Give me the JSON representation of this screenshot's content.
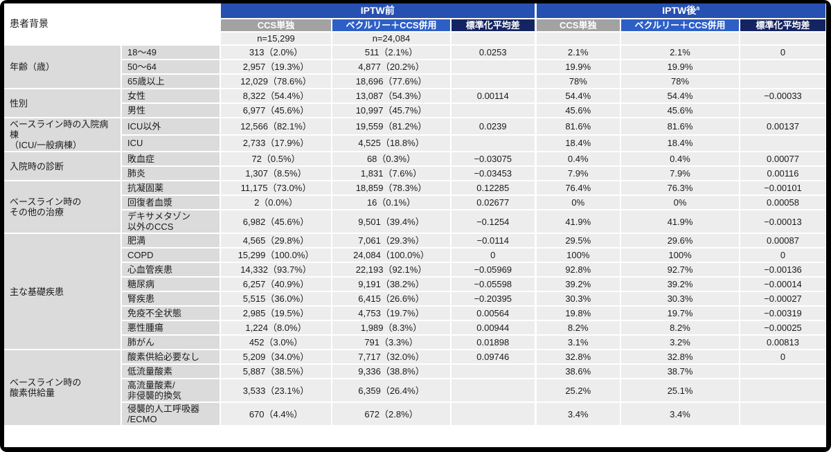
{
  "header": {
    "corner_label": "患者背景",
    "pre_title": "IPTW前",
    "post_title": "IPTW後",
    "post_sup": "a",
    "sub_ccs": "CCS単独",
    "sub_vek": "ベクルリー＋CCS併用",
    "sub_smd": "標準化平均差",
    "n_pre_ccs": "n=15,299",
    "n_pre_vek": "n=24,084"
  },
  "colors": {
    "band_blue": "#2650B2",
    "veklury_blue": "#2E5FC6",
    "smd_navy": "#142462",
    "ccs_gray": "#A2A2A2",
    "label_gray": "#DBDBDB",
    "cell_gray": "#EDEDED",
    "frame_black": "#000000"
  },
  "groups": [
    {
      "label": "年齢（歳）",
      "rows": [
        {
          "label": "18〜49",
          "pre_ccs": "313（2.0%）",
          "pre_vek": "511（2.1%）",
          "pre_smd": "0.0253",
          "post_ccs": "2.1%",
          "post_vek": "2.1%",
          "post_smd": "0"
        },
        {
          "label": "50〜64",
          "pre_ccs": "2,957（19.3%）",
          "pre_vek": "4,877（20.2%）",
          "pre_smd": "",
          "post_ccs": "19.9%",
          "post_vek": "19.9%",
          "post_smd": ""
        },
        {
          "label": "65歳以上",
          "pre_ccs": "12,029（78.6%）",
          "pre_vek": "18,696（77.6%）",
          "pre_smd": "",
          "post_ccs": "78%",
          "post_vek": "78%",
          "post_smd": ""
        }
      ]
    },
    {
      "label": "性別",
      "rows": [
        {
          "label": "女性",
          "pre_ccs": "8,322（54.4%）",
          "pre_vek": "13,087（54.3%）",
          "pre_smd": "0.00114",
          "post_ccs": "54.4%",
          "post_vek": "54.4%",
          "post_smd": "−0.00033"
        },
        {
          "label": "男性",
          "pre_ccs": "6,977（45.6%）",
          "pre_vek": "10,997（45.7%）",
          "pre_smd": "",
          "post_ccs": "45.6%",
          "post_vek": "45.6%",
          "post_smd": ""
        }
      ]
    },
    {
      "label": "ベースライン時の入院病棟\n（ICU/一般病棟）",
      "rows": [
        {
          "label": "ICU以外",
          "pre_ccs": "12,566（82.1%）",
          "pre_vek": "19,559（81.2%）",
          "pre_smd": "0.0239",
          "post_ccs": "81.6%",
          "post_vek": "81.6%",
          "post_smd": "0.00137"
        },
        {
          "label": "ICU",
          "pre_ccs": "2,733（17.9%）",
          "pre_vek": "4,525（18.8%）",
          "pre_smd": "",
          "post_ccs": "18.4%",
          "post_vek": "18.4%",
          "post_smd": ""
        }
      ]
    },
    {
      "label": "入院時の診断",
      "rows": [
        {
          "label": "敗血症",
          "pre_ccs": "72（0.5%）",
          "pre_vek": "68（0.3%）",
          "pre_smd": "−0.03075",
          "post_ccs": "0.4%",
          "post_vek": "0.4%",
          "post_smd": "0.00077"
        },
        {
          "label": "肺炎",
          "pre_ccs": "1,307（8.5%）",
          "pre_vek": "1,831（7.6%）",
          "pre_smd": "−0.03453",
          "post_ccs": "7.9%",
          "post_vek": "7.9%",
          "post_smd": "0.00116"
        }
      ]
    },
    {
      "label": "ベースライン時の\nその他の治療",
      "rows": [
        {
          "label": "抗凝固薬",
          "pre_ccs": "11,175（73.0%）",
          "pre_vek": "18,859（78.3%）",
          "pre_smd": "0.12285",
          "post_ccs": "76.4%",
          "post_vek": "76.3%",
          "post_smd": "−0.00101"
        },
        {
          "label": "回復者血漿",
          "pre_ccs": "2（0.0%）",
          "pre_vek": "16（0.1%）",
          "pre_smd": "0.02677",
          "post_ccs": "0%",
          "post_vek": "0%",
          "post_smd": "0.00058"
        },
        {
          "label": "デキサメタゾン\n以外のCCS",
          "pre_ccs": "6,982（45.6%）",
          "pre_vek": "9,501（39.4%）",
          "pre_smd": "−0.1254",
          "post_ccs": "41.9%",
          "post_vek": "41.9%",
          "post_smd": "−0.00013"
        }
      ]
    },
    {
      "label": "主な基礎疾患",
      "rows": [
        {
          "label": "肥満",
          "pre_ccs": "4,565（29.8%）",
          "pre_vek": "7,061（29.3%）",
          "pre_smd": "−0.0114",
          "post_ccs": "29.5%",
          "post_vek": "29.6%",
          "post_smd": "0.00087"
        },
        {
          "label": "COPD",
          "pre_ccs": "15,299（100.0%）",
          "pre_vek": "24,084（100.0%）",
          "pre_smd": "0",
          "post_ccs": "100%",
          "post_vek": "100%",
          "post_smd": "0"
        },
        {
          "label": "心血管疾患",
          "pre_ccs": "14,332（93.7%）",
          "pre_vek": "22,193（92.1%）",
          "pre_smd": "−0.05969",
          "post_ccs": "92.8%",
          "post_vek": "92.7%",
          "post_smd": "−0.00136"
        },
        {
          "label": "糖尿病",
          "pre_ccs": "6,257（40.9%）",
          "pre_vek": "9,191（38.2%）",
          "pre_smd": "−0.05598",
          "post_ccs": "39.2%",
          "post_vek": "39.2%",
          "post_smd": "−0.00014"
        },
        {
          "label": "腎疾患",
          "pre_ccs": "5,515（36.0%）",
          "pre_vek": "6,415（26.6%）",
          "pre_smd": "−0.20395",
          "post_ccs": "30.3%",
          "post_vek": "30.3%",
          "post_smd": "−0.00027"
        },
        {
          "label": "免疫不全状態",
          "pre_ccs": "2,985（19.5%）",
          "pre_vek": "4,753（19.7%）",
          "pre_smd": "0.00564",
          "post_ccs": "19.8%",
          "post_vek": "19.7%",
          "post_smd": "−0.00319"
        },
        {
          "label": "悪性腫瘍",
          "pre_ccs": "1,224（8.0%）",
          "pre_vek": "1,989（8.3%）",
          "pre_smd": "0.00944",
          "post_ccs": "8.2%",
          "post_vek": "8.2%",
          "post_smd": "−0.00025"
        },
        {
          "label": "肺がん",
          "pre_ccs": "452（3.0%）",
          "pre_vek": "791（3.3%）",
          "pre_smd": "0.01898",
          "post_ccs": "3.1%",
          "post_vek": "3.2%",
          "post_smd": "0.00813"
        }
      ]
    },
    {
      "label": "ベースライン時の\n酸素供給量",
      "rows": [
        {
          "label": "酸素供給必要なし",
          "pre_ccs": "5,209（34.0%）",
          "pre_vek": "7,717（32.0%）",
          "pre_smd": "0.09746",
          "post_ccs": "32.8%",
          "post_vek": "32.8%",
          "post_smd": "0"
        },
        {
          "label": "低流量酸素",
          "pre_ccs": "5,887（38.5%）",
          "pre_vek": "9,336（38.8%）",
          "pre_smd": "",
          "post_ccs": "38.6%",
          "post_vek": "38.7%",
          "post_smd": ""
        },
        {
          "label": "高流量酸素/\n非侵襲的換気",
          "pre_ccs": "3,533（23.1%）",
          "pre_vek": "6,359（26.4%）",
          "pre_smd": "",
          "post_ccs": "25.2%",
          "post_vek": "25.1%",
          "post_smd": ""
        },
        {
          "label": "侵襲的人工呼吸器\n/ECMO",
          "pre_ccs": "670（4.4%）",
          "pre_vek": "672（2.8%）",
          "pre_smd": "",
          "post_ccs": "3.4%",
          "post_vek": "3.4%",
          "post_smd": ""
        }
      ]
    }
  ]
}
